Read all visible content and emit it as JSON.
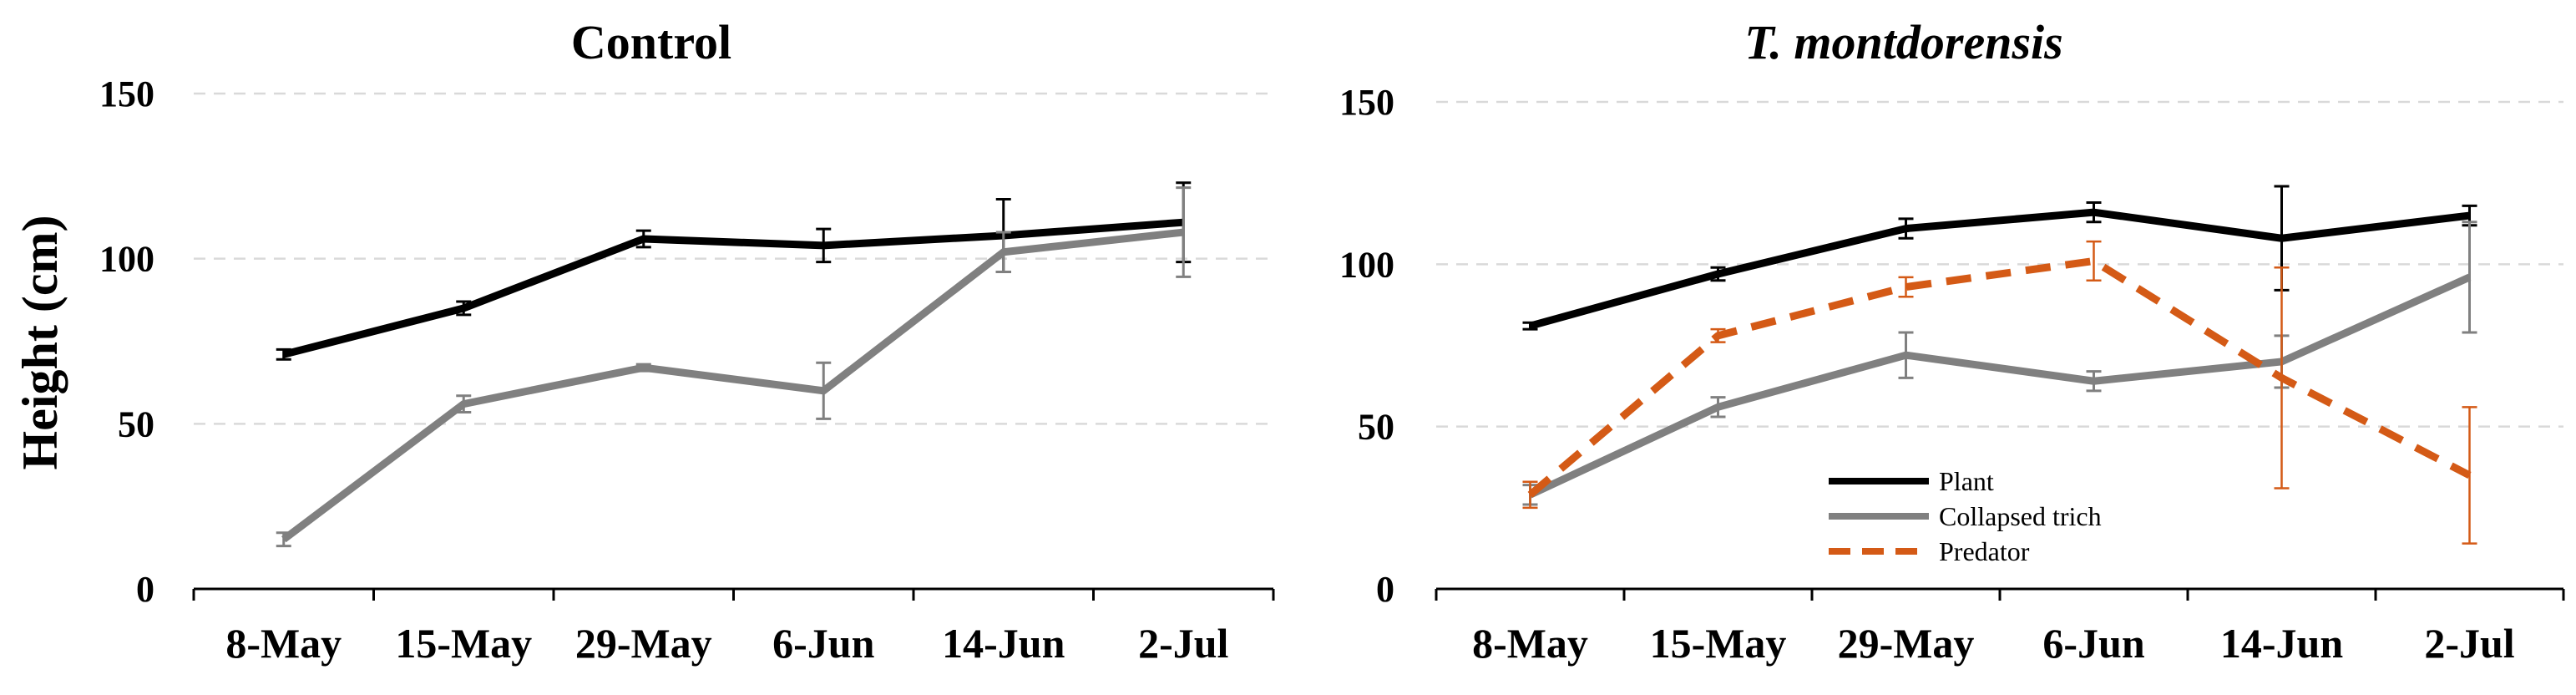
{
  "chart_data": [
    {
      "type": "line",
      "title": "Control",
      "title_style": "bold",
      "ylabel": "Height (cm)",
      "xlabel": "",
      "categories": [
        "8-May",
        "15-May",
        "29-May",
        "6-Jun",
        "14-Jun",
        "2-Jul"
      ],
      "ylim": [
        0,
        150
      ],
      "yticks": [
        0,
        50,
        100,
        150
      ],
      "grid": true,
      "series": [
        {
          "name": "Plant",
          "color": "#000000",
          "line_style": "solid",
          "values": [
            71,
            85,
            106,
            104,
            107,
            111
          ],
          "errors": [
            1.5,
            2,
            2.5,
            5,
            11,
            12
          ]
        },
        {
          "name": "Collapsed trich",
          "color": "#808080",
          "line_style": "solid",
          "values": [
            15,
            56,
            67,
            60,
            102,
            108
          ],
          "errors": [
            2,
            2.5,
            1,
            8.5,
            6,
            13.5
          ]
        }
      ]
    },
    {
      "type": "line",
      "title": "T. montdorensis",
      "title_style": "bold-italic",
      "ylabel": "",
      "xlabel": "",
      "categories": [
        "8-May",
        "15-May",
        "29-May",
        "6-Jun",
        "14-Jun",
        "2-Jul"
      ],
      "ylim": [
        0,
        150
      ],
      "yticks": [
        0,
        50,
        100,
        150
      ],
      "grid": true,
      "legend_position": "bottom-center",
      "series": [
        {
          "name": "Plant",
          "color": "#000000",
          "line_style": "solid",
          "values": [
            81,
            97,
            111,
            116,
            108,
            115
          ],
          "errors": [
            1,
            2,
            3,
            3,
            16,
            3
          ]
        },
        {
          "name": "Collapsed trich",
          "color": "#808080",
          "line_style": "solid",
          "values": [
            29,
            56,
            72,
            64,
            70,
            96
          ],
          "errors": [
            3,
            3,
            7,
            3,
            8,
            17
          ]
        },
        {
          "name": "Predator",
          "color": "#d45a16",
          "line_style": "dashed",
          "values": [
            29,
            78,
            93,
            101,
            65,
            35
          ],
          "errors": [
            4,
            2,
            3,
            6,
            34,
            21
          ]
        }
      ]
    }
  ]
}
